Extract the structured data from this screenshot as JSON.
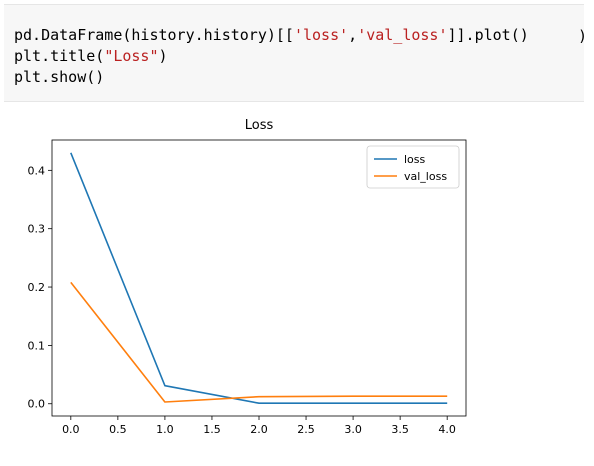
{
  "code": {
    "line1_pre": "pd.DataFrame(history.history)[[",
    "line1_str1": "'loss'",
    "line1_mid": ",",
    "line1_str2": "'val_loss'",
    "line1_post": "]].plot()",
    "line1_trailing": ")",
    "line2_pre": "plt.title(",
    "line2_str": "\"Loss\"",
    "line2_post": ")",
    "line3": "plt.show()"
  },
  "chart_data": {
    "type": "line",
    "title": "Loss",
    "xlabel": "",
    "ylabel": "",
    "x": [
      0,
      1,
      2,
      3,
      4
    ],
    "xlim": [
      -0.2,
      4.2
    ],
    "ylim": [
      -0.021,
      0.452
    ],
    "xticks": [
      0.0,
      0.5,
      1.0,
      1.5,
      2.0,
      2.5,
      3.0,
      3.5,
      4.0
    ],
    "xtick_labels": [
      "0.0",
      "0.5",
      "1.0",
      "1.5",
      "2.0",
      "2.5",
      "3.0",
      "3.5",
      "4.0"
    ],
    "yticks": [
      0.0,
      0.1,
      0.2,
      0.3,
      0.4
    ],
    "ytick_labels": [
      "0.0",
      "0.1",
      "0.2",
      "0.3",
      "0.4"
    ],
    "grid": false,
    "legend": "top-right",
    "series": [
      {
        "name": "loss",
        "color": "#1f77b4",
        "values": [
          0.43,
          0.031,
          0.001,
          0.001,
          0.001
        ]
      },
      {
        "name": "val_loss",
        "color": "#ff7f0e",
        "values": [
          0.208,
          0.003,
          0.012,
          0.013,
          0.013
        ]
      }
    ]
  }
}
